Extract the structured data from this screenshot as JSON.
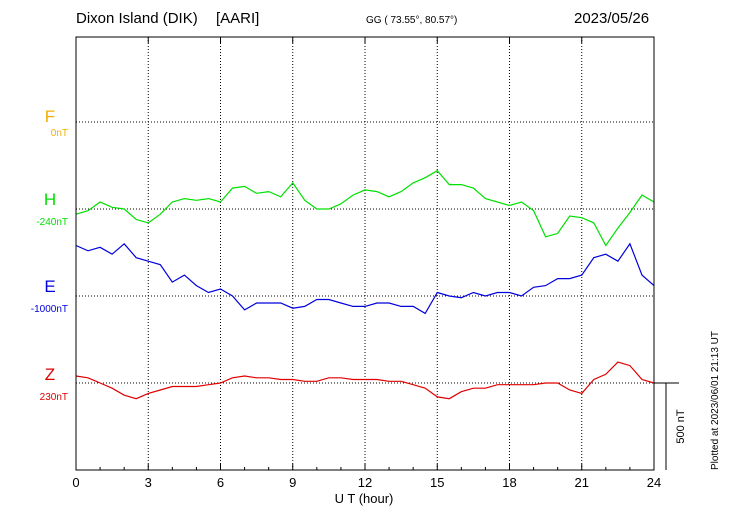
{
  "header": {
    "station": "Dixon Island (DIK)",
    "institute": "[AARI]",
    "coords": "GG ( 73.55°,  80.57°)",
    "date": "2023/05/26"
  },
  "footer_note": "Plotted at 2023/06/01 21:13 UT",
  "colors": {
    "F": "#f0b000",
    "H": "#00e000",
    "E": "#0000dd",
    "Z": "#e00000",
    "axis": "#000000"
  },
  "chart_data": {
    "type": "line",
    "xlabel": "U T (hour)",
    "xlim": [
      0,
      24
    ],
    "x_ticks": [
      "0",
      "3",
      "6",
      "9",
      "12",
      "15",
      "18",
      "21",
      "24"
    ],
    "scale_bar_label": "500 nT",
    "scale_bar_nT": 500,
    "grid": true,
    "series": [
      {
        "name": "F",
        "baseline_label": "0nT",
        "color": "#f0b000",
        "x": [],
        "values": []
      },
      {
        "name": "H",
        "baseline_label": "-240nT",
        "color": "#00e000",
        "x": [
          0,
          0.5,
          1,
          1.5,
          2,
          2.5,
          3,
          3.5,
          4,
          4.5,
          5,
          5.5,
          6,
          6.5,
          7,
          7.5,
          8,
          8.5,
          9,
          9.5,
          10,
          10.5,
          11,
          11.5,
          12,
          12.5,
          13,
          13.5,
          14,
          14.5,
          15,
          15.5,
          16,
          16.5,
          17,
          17.5,
          18,
          18.5,
          19,
          19.5,
          20,
          20.5,
          21,
          21.5,
          22,
          22.5,
          23,
          23.5,
          24
        ],
        "values": [
          -270,
          -250,
          -200,
          -230,
          -240,
          -300,
          -320,
          -270,
          -200,
          -180,
          -190,
          -180,
          -200,
          -120,
          -110,
          -150,
          -140,
          -170,
          -90,
          -190,
          -240,
          -240,
          -210,
          -160,
          -130,
          -140,
          -170,
          -140,
          -90,
          -60,
          -20,
          -100,
          -100,
          -120,
          -180,
          -200,
          -220,
          -200,
          -250,
          -400,
          -380,
          -280,
          -290,
          -320,
          -450,
          -350,
          -260,
          -160,
          -200
        ]
      },
      {
        "name": "E",
        "baseline_label": "-1000nT",
        "color": "#0000dd",
        "x": [
          0,
          0.5,
          1,
          1.5,
          2,
          2.5,
          3,
          3.5,
          4,
          4.5,
          5,
          5.5,
          6,
          6.5,
          7,
          7.5,
          8,
          8.5,
          9,
          9.5,
          10,
          10.5,
          11,
          11.5,
          12,
          12.5,
          13,
          13.5,
          14,
          14.5,
          15,
          15.5,
          16,
          16.5,
          17,
          17.5,
          18,
          18.5,
          19,
          19.5,
          20,
          20.5,
          21,
          21.5,
          22,
          22.5,
          23,
          23.5,
          24
        ],
        "values": [
          -710,
          -740,
          -720,
          -760,
          -700,
          -780,
          -800,
          -820,
          -920,
          -880,
          -940,
          -980,
          -960,
          -1000,
          -1080,
          -1040,
          -1040,
          -1040,
          -1070,
          -1060,
          -1020,
          -1020,
          -1040,
          -1060,
          -1060,
          -1040,
          -1040,
          -1060,
          -1060,
          -1100,
          -980,
          -1000,
          -1010,
          -980,
          -1000,
          -980,
          -980,
          -1000,
          -950,
          -940,
          -900,
          -900,
          -880,
          -780,
          -760,
          -800,
          -700,
          -880,
          -940
        ]
      },
      {
        "name": "Z",
        "baseline_label": "230nT",
        "color": "#e00000",
        "x": [
          0,
          0.5,
          1,
          1.5,
          2,
          2.5,
          3,
          3.5,
          4,
          4.5,
          5,
          5.5,
          6,
          6.5,
          7,
          7.5,
          8,
          8.5,
          9,
          9.5,
          10,
          10.5,
          11,
          11.5,
          12,
          12.5,
          13,
          13.5,
          14,
          14.5,
          15,
          15.5,
          16,
          16.5,
          17,
          17.5,
          18,
          18.5,
          19,
          19.5,
          20,
          20.5,
          21,
          21.5,
          22,
          22.5,
          23,
          23.5,
          24
        ],
        "values": [
          270,
          260,
          230,
          200,
          160,
          140,
          170,
          190,
          210,
          210,
          210,
          220,
          230,
          260,
          270,
          260,
          260,
          250,
          250,
          240,
          240,
          260,
          260,
          250,
          250,
          250,
          240,
          240,
          220,
          200,
          150,
          140,
          180,
          200,
          200,
          220,
          220,
          220,
          220,
          230,
          230,
          190,
          170,
          250,
          280,
          350,
          330,
          250,
          230
        ]
      }
    ]
  }
}
